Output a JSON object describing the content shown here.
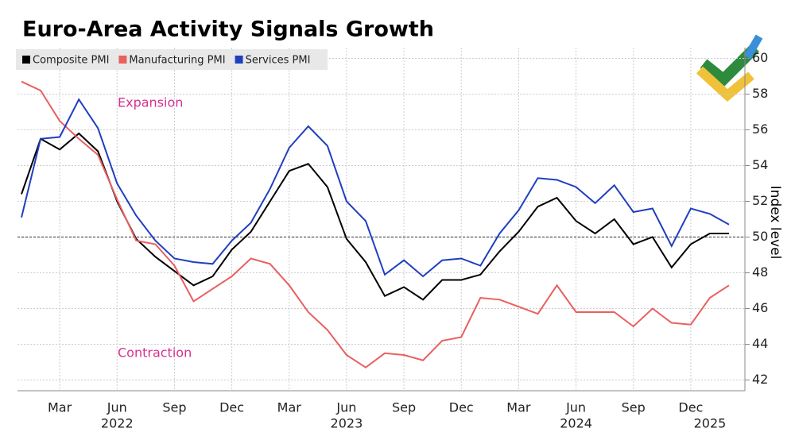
{
  "chart_data": {
    "type": "line",
    "title": "Euro-Area Activity Signals Growth",
    "categories": [
      null,
      null,
      "Mar",
      null,
      null,
      "Jun",
      null,
      null,
      "Sep",
      null,
      null,
      "Dec",
      null,
      null,
      "Mar",
      null,
      null,
      "Jun",
      null,
      null,
      "Sep",
      null,
      null,
      "Dec",
      null,
      null,
      "Mar",
      null,
      null,
      "Jun",
      null,
      null,
      "Sep",
      null,
      null,
      "Dec",
      null,
      null
    ],
    "category_years": [
      null,
      null,
      null,
      null,
      null,
      "2022",
      null,
      null,
      null,
      null,
      null,
      null,
      null,
      null,
      null,
      null,
      null,
      "2023",
      null,
      null,
      null,
      null,
      null,
      null,
      null,
      null,
      null,
      null,
      null,
      "2024",
      null,
      null,
      null,
      null,
      null,
      null,
      "2025",
      null
    ],
    "series": [
      {
        "name": "Composite PMI",
        "color": "#000000",
        "values": [
          52.4,
          55.5,
          54.9,
          55.8,
          54.8,
          52.0,
          49.9,
          48.9,
          48.1,
          47.3,
          47.8,
          49.3,
          50.3,
          52.0,
          53.7,
          54.1,
          52.8,
          49.9,
          48.6,
          46.7,
          47.2,
          46.5,
          47.6,
          47.6,
          47.9,
          49.2,
          50.3,
          51.7,
          52.2,
          50.9,
          50.2,
          51.0,
          49.6,
          50.0,
          48.3,
          49.6,
          50.2,
          50.2
        ]
      },
      {
        "name": "Manufacturing PMI",
        "color": "#e8605f",
        "values": [
          58.7,
          58.2,
          56.5,
          55.5,
          54.6,
          52.1,
          49.8,
          49.6,
          48.4,
          46.4,
          47.1,
          47.8,
          48.8,
          48.5,
          47.3,
          45.8,
          44.8,
          43.4,
          42.7,
          43.5,
          43.4,
          43.1,
          44.2,
          44.4,
          46.6,
          46.5,
          46.1,
          45.7,
          47.3,
          45.8,
          45.8,
          45.8,
          45.0,
          46.0,
          45.2,
          45.1,
          46.6,
          47.3
        ]
      },
      {
        "name": "Services PMI",
        "color": "#1f3fbf",
        "values": [
          51.1,
          55.5,
          55.6,
          57.7,
          56.1,
          53.0,
          51.2,
          49.8,
          48.8,
          48.6,
          48.5,
          49.8,
          50.8,
          52.7,
          55.0,
          56.2,
          55.1,
          52.0,
          50.9,
          47.9,
          48.7,
          47.8,
          48.7,
          48.8,
          48.4,
          50.2,
          51.5,
          53.3,
          53.2,
          52.8,
          51.9,
          52.9,
          51.4,
          51.6,
          49.5,
          51.6,
          51.3,
          50.7
        ]
      }
    ],
    "ylim": [
      41.4,
      60.6
    ],
    "yticks": [
      42,
      44,
      46,
      48,
      50,
      52,
      54,
      56,
      58,
      60
    ],
    "y_label": "Index level",
    "reference_line": 50,
    "grid": true,
    "annotations": [
      {
        "text": "Expansion",
        "value": 57.5,
        "color": "#d6308f"
      },
      {
        "text": "Contraction",
        "value": 43.5,
        "color": "#d6308f"
      }
    ]
  }
}
